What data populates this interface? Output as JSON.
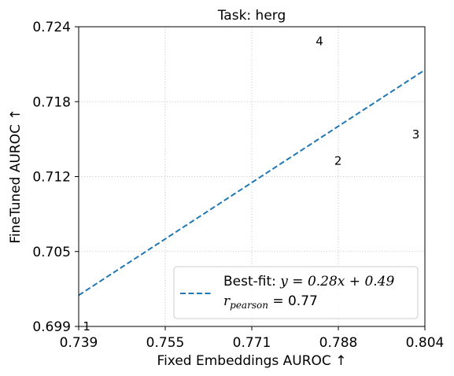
{
  "chart_data": {
    "type": "scatter",
    "title": "Task: herg",
    "xlabel": "Fixed Embeddings AUROC ↑",
    "ylabel": "FineTuned AUROC ↑",
    "xlim": [
      0.739,
      0.804
    ],
    "ylim": [
      0.699,
      0.724
    ],
    "x_ticks": [
      "0.739",
      "0.755",
      "0.771",
      "0.788",
      "0.804"
    ],
    "y_ticks": [
      "0.699",
      "0.705",
      "0.712",
      "0.718",
      "0.724"
    ],
    "grid": true,
    "points": [
      {
        "label": "1",
        "x": 0.7405,
        "y": 0.699
      },
      {
        "label": "4",
        "x": 0.7842,
        "y": 0.7228
      },
      {
        "label": "2",
        "x": 0.7877,
        "y": 0.7128
      },
      {
        "label": "3",
        "x": 0.8023,
        "y": 0.715
      }
    ],
    "fit_line": {
      "slope": 0.28,
      "intercept": 0.49,
      "points": [
        [
          0.739,
          0.7016
        ],
        [
          0.804,
          0.7204
        ]
      ],
      "color": "#1f77b4",
      "style": "dashed"
    },
    "legend": {
      "placement": "lower right",
      "line1_prefix": "Best-fit: ",
      "line1_math": "y = 0.28x + 0.49",
      "line2_var": "r",
      "line2_sub": "pearson",
      "line2_rest": " = 0.77"
    }
  }
}
